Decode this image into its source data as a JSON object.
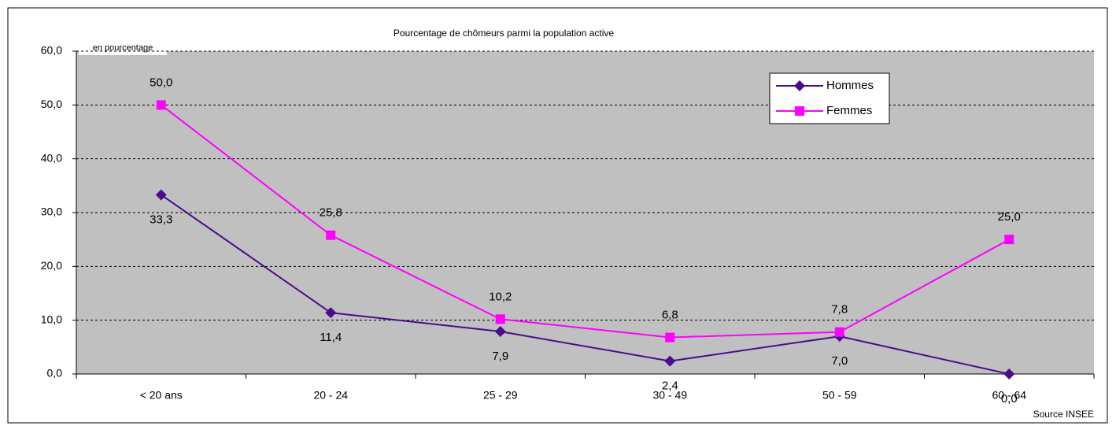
{
  "chart_data": {
    "type": "line",
    "title": "Pourcentage de chômeurs parmi la population active",
    "annotation": "en pourcentage",
    "source": "Source INSEE",
    "categories": [
      "< 20 ans",
      "20 - 24",
      "25 - 29",
      "30 - 49",
      "50 - 59",
      "60 - 64"
    ],
    "series": [
      {
        "name": "Hommes",
        "color": "#4b0c8c",
        "marker": "diamond",
        "values": [
          33.3,
          11.4,
          7.9,
          2.4,
          7.0,
          0.0
        ],
        "value_labels": [
          "33,3",
          "11,4",
          "7,9",
          "2,4",
          "7,0",
          "0,0"
        ]
      },
      {
        "name": "Femmes",
        "color": "#ff00ff",
        "marker": "square",
        "values": [
          50.0,
          25.8,
          10.2,
          6.8,
          7.8,
          25.0
        ],
        "value_labels": [
          "50,0",
          "25,8",
          "10,2",
          "6,8",
          "7,8",
          "25,0"
        ]
      }
    ],
    "ylim": [
      0,
      60
    ],
    "yticks": [
      {
        "value": 0,
        "label": "0,0"
      },
      {
        "value": 10,
        "label": "10,0"
      },
      {
        "value": 20,
        "label": "20,0"
      },
      {
        "value": 30,
        "label": "30,0"
      },
      {
        "value": 40,
        "label": "40,0"
      },
      {
        "value": 50,
        "label": "50,0"
      },
      {
        "value": 60,
        "label": "60,0"
      }
    ],
    "grid": true,
    "legend": "top-right"
  }
}
